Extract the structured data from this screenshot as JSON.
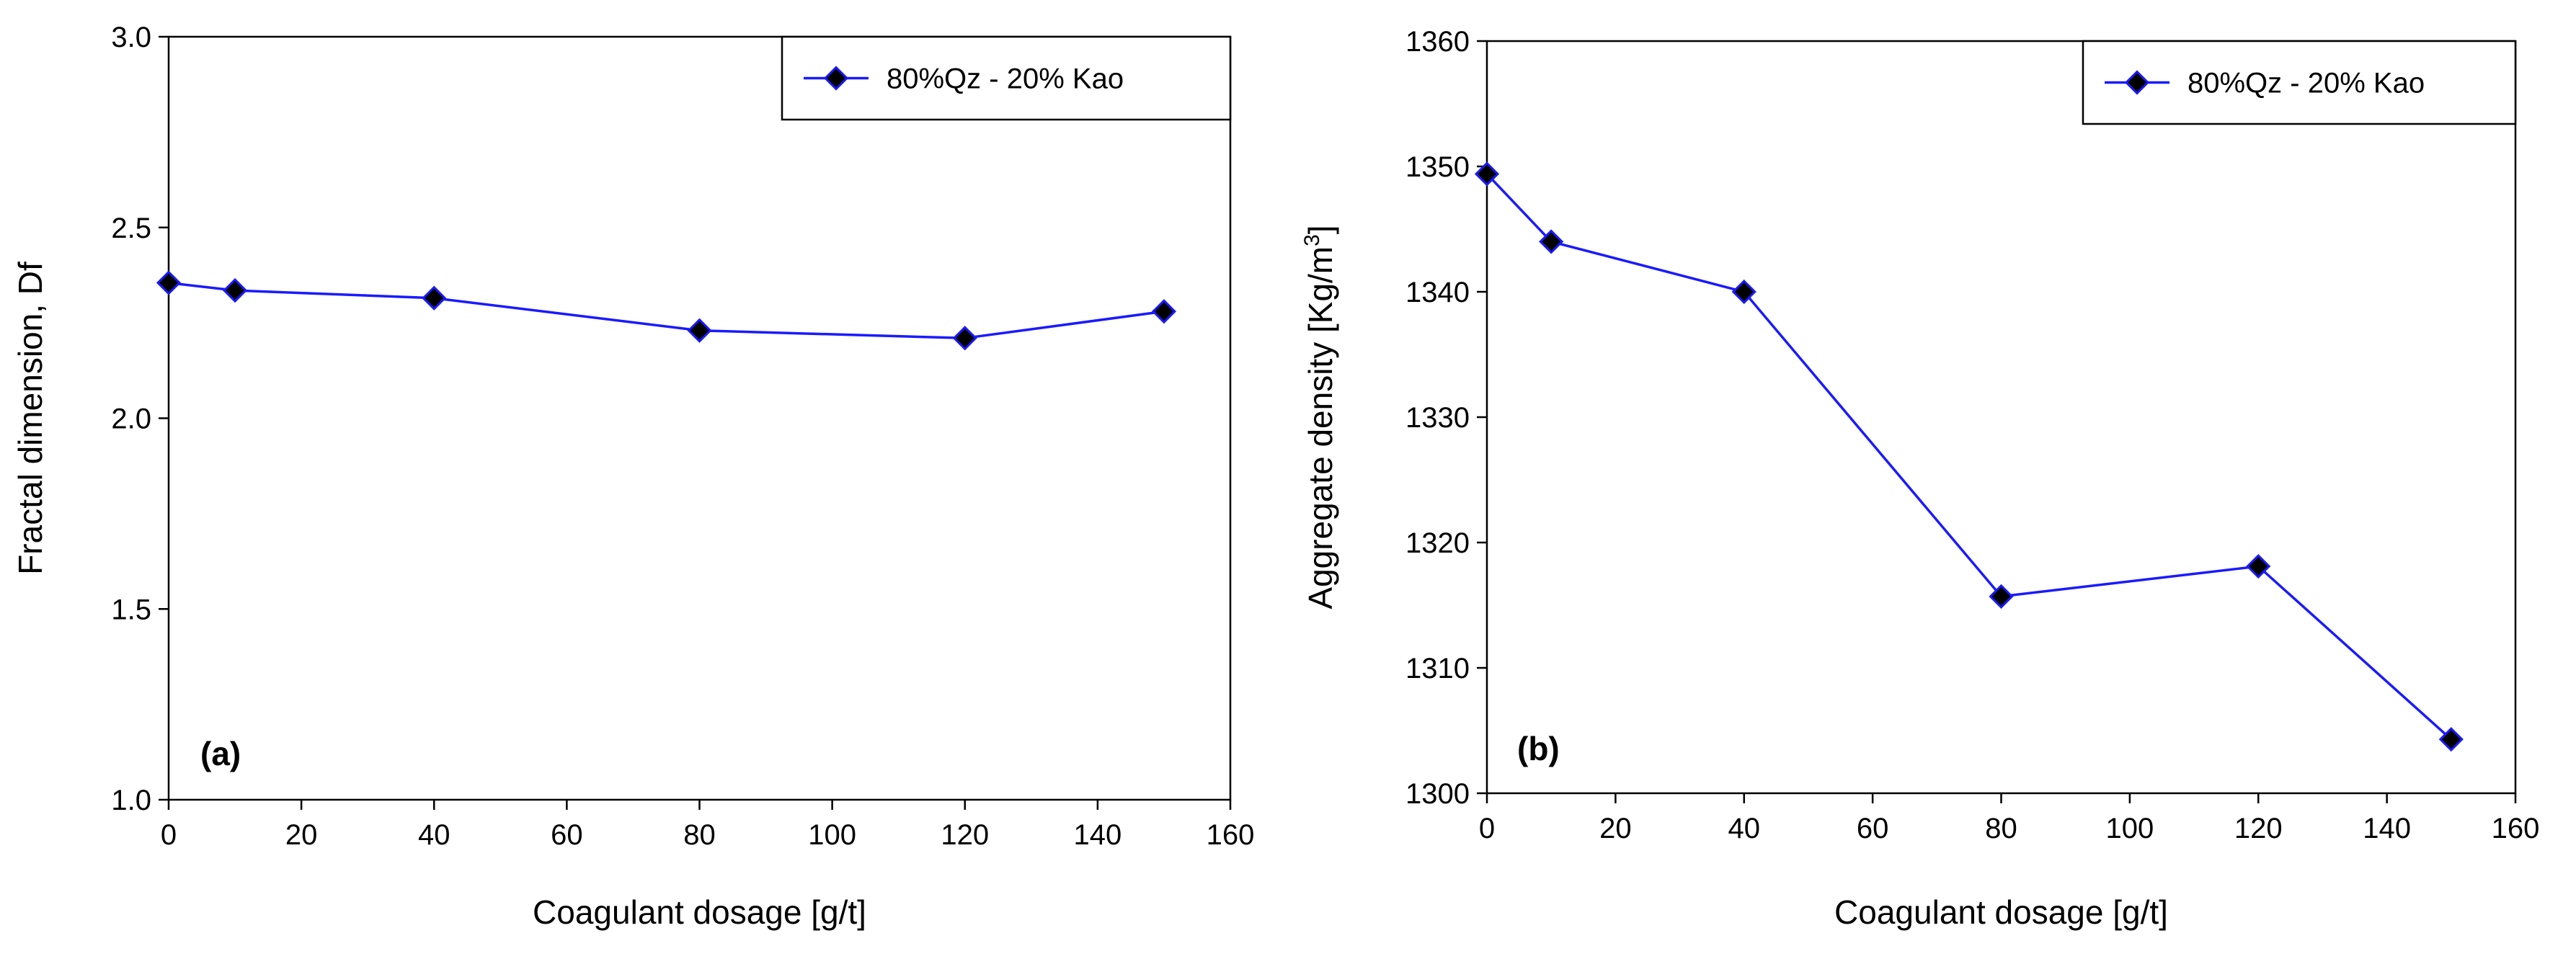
{
  "chart_data": [
    {
      "type": "line",
      "panel_label": "(a)",
      "xlabel": "Coagulant dosage [g/t]",
      "ylabel": "Fractal dimension, Df",
      "xlim": [
        0,
        160
      ],
      "ylim": [
        1.0,
        3.0
      ],
      "xticks": [
        0,
        20,
        40,
        60,
        80,
        100,
        120,
        140,
        160
      ],
      "yticks": [
        1.0,
        1.5,
        2.0,
        2.5,
        3.0
      ],
      "xtick_labels": [
        "0",
        "20",
        "40",
        "60",
        "80",
        "100",
        "120",
        "140",
        "160"
      ],
      "ytick_labels": [
        "1.0",
        "1.5",
        "2.0",
        "2.5",
        "3.0"
      ],
      "grid": false,
      "legend_position": "top-right",
      "series": [
        {
          "name": "80%Qz - 20% Kao",
          "color": "#1a1aff",
          "marker": "diamond",
          "x": [
            0,
            10,
            40,
            80,
            120,
            150
          ],
          "values": [
            2.355,
            2.335,
            2.315,
            2.23,
            2.21,
            2.28
          ]
        }
      ]
    },
    {
      "type": "line",
      "panel_label": "(b)",
      "xlabel": "Coagulant dosage [g/t]",
      "ylabel": "Aggregate density [Kg/m3]",
      "ylabel_main": "Aggregate density [Kg/m",
      "ylabel_sup": "3",
      "ylabel_end": "]",
      "xlim": [
        0,
        160
      ],
      "ylim": [
        1300,
        1360
      ],
      "xticks": [
        0,
        20,
        40,
        60,
        80,
        100,
        120,
        140,
        160
      ],
      "yticks": [
        1300,
        1310,
        1320,
        1330,
        1340,
        1350,
        1360
      ],
      "xtick_labels": [
        "0",
        "20",
        "40",
        "60",
        "80",
        "100",
        "120",
        "140",
        "160"
      ],
      "ytick_labels": [
        "1300",
        "1310",
        "1320",
        "1330",
        "1340",
        "1350",
        "1360"
      ],
      "grid": false,
      "legend_position": "top-right",
      "series": [
        {
          "name": "80%Qz - 20% Kao",
          "color": "#1a1aff",
          "marker": "diamond",
          "x": [
            0,
            10,
            40,
            80,
            120,
            150
          ],
          "values": [
            1349.4,
            1344.0,
            1340.0,
            1315.7,
            1318.1,
            1304.3
          ]
        }
      ]
    }
  ]
}
